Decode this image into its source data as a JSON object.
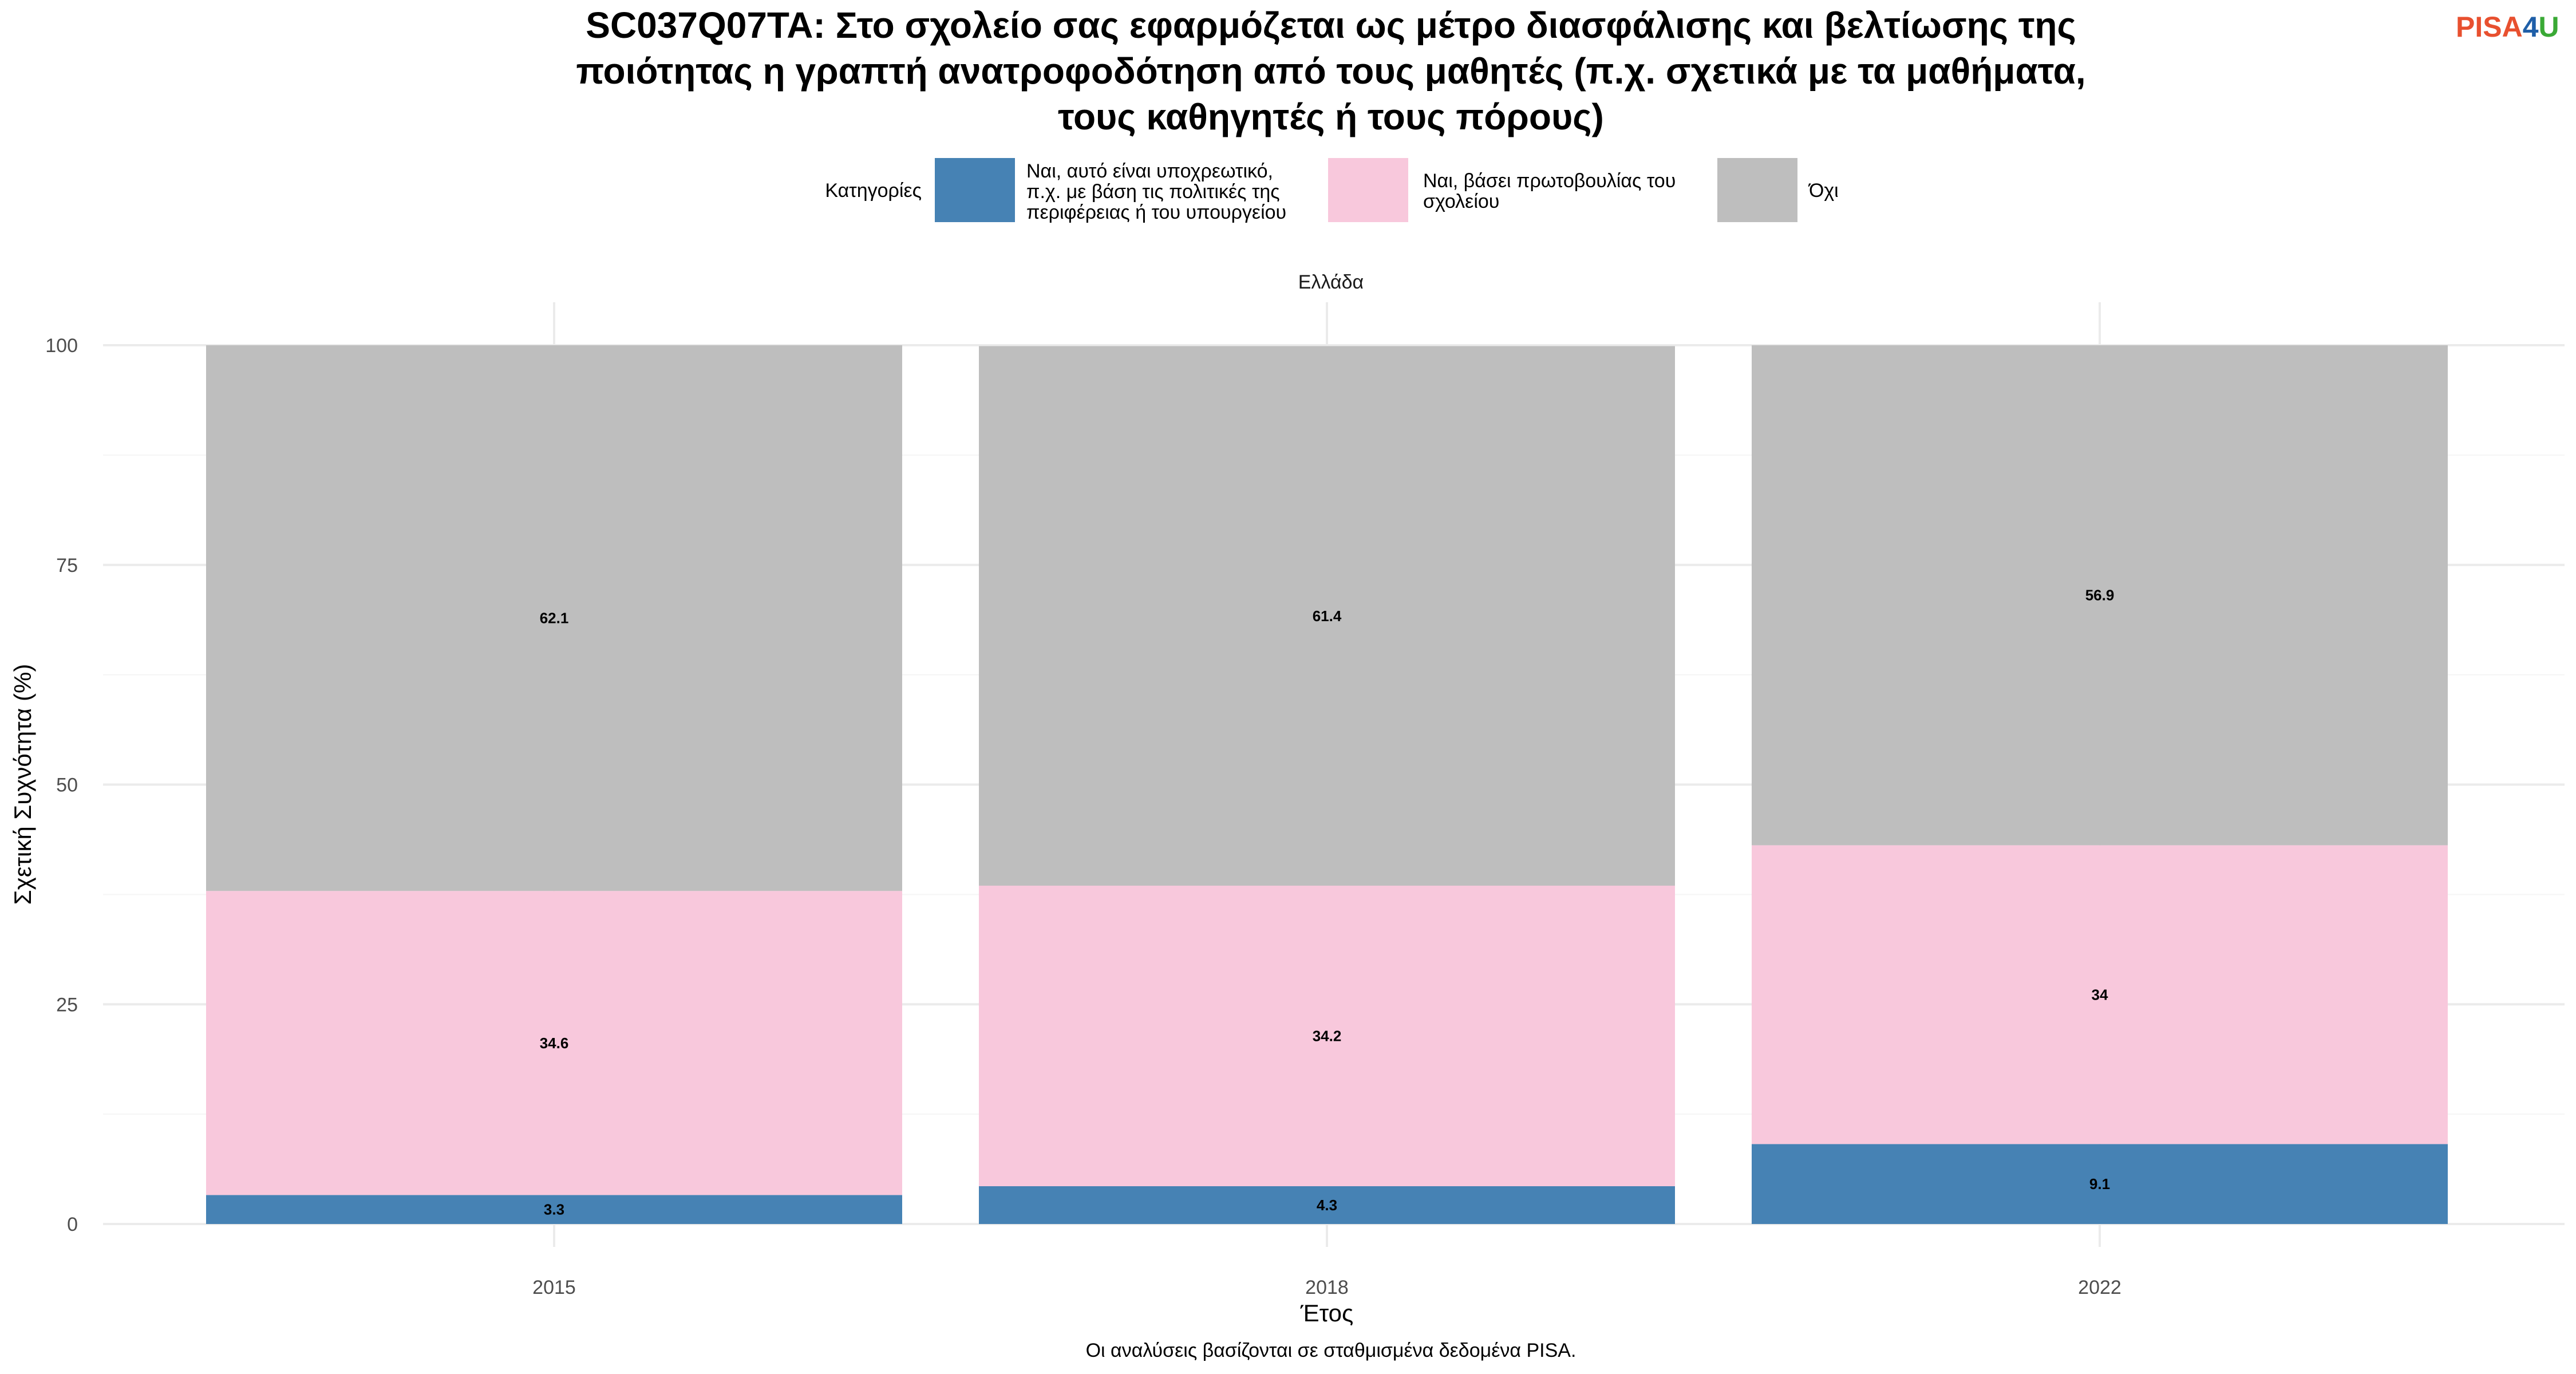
{
  "logo": {
    "part1": "PISA",
    "part2": "4",
    "part3": "U",
    "color1": "#e8502f",
    "color2": "#1f5fa8",
    "color3": "#3aa935"
  },
  "chart_data": {
    "type": "bar",
    "stacked": true,
    "title_lines": [
      "SC037Q07TA: Στο σχολείο σας εφαρμόζεται ως μέτρο διασφάλισης και βελτίωσης της",
      "ποιότητας η γραπτή ανατροφοδότηση από τους μαθητές (π.χ. σχετικά με τα μαθήματα,",
      "τους καθηγητές ή τους πόρους)"
    ],
    "legend_title": "Κατηγορίες",
    "legend_position": "top",
    "facet": "Ελλάδα",
    "categories": [
      "2015",
      "2018",
      "2022"
    ],
    "series": [
      {
        "name_lines": [
          "Ναι, αυτό είναι υποχρεωτικό,",
          "π.χ. με βάση τις πολιτικές της",
          "περιφέρειας ή του υπουργείου"
        ],
        "color": "#4682b4",
        "values": [
          3.3,
          4.3,
          9.1
        ],
        "labels": [
          "3.3",
          "4.3",
          "9.1"
        ]
      },
      {
        "name_lines": [
          "Ναι, βάσει πρωτοβουλίας του",
          "σχολείου"
        ],
        "color": "#f8c8dc",
        "values": [
          34.6,
          34.2,
          34.0
        ],
        "labels": [
          "34.6",
          "34.2",
          "34"
        ]
      },
      {
        "name_lines": [
          "Όχι"
        ],
        "color": "#bebebe",
        "values": [
          62.1,
          61.4,
          56.9
        ],
        "labels": [
          "62.1",
          "61.4",
          "56.9"
        ]
      }
    ],
    "xlabel": "Έτος",
    "ylabel": "Σχετική Συχνότητα (%)",
    "ylim": [
      0,
      100
    ],
    "yticks": [
      "0",
      "25",
      "50",
      "75",
      "100"
    ],
    "grid": true,
    "caption": "Οι αναλύσεις βασίζονται σε σταθμισμένα δεδομένα PISA."
  }
}
